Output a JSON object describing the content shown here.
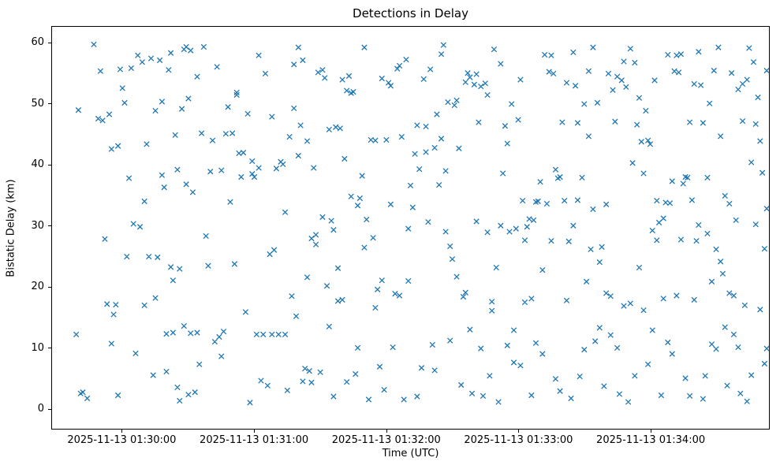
{
  "title": "Detections in Delay",
  "chart_data": {
    "type": "scatter",
    "title": "Detections in Delay",
    "xlabel": "Time (UTC)",
    "ylabel": "Bistatic Delay (km)",
    "marker": "x",
    "marker_color": "#1f77b4",
    "x_unit": "seconds after 2025-11-13 01:30:00 UTC",
    "xlim_seconds": [
      -32,
      294
    ],
    "ylim": [
      -3.4,
      62.7
    ],
    "y_ticks": [
      0,
      10,
      20,
      30,
      40,
      50,
      60
    ],
    "x_ticks": [
      {
        "t": 0,
        "label": "2025-11-13 01:30:00"
      },
      {
        "t": 60,
        "label": "2025-11-13 01:31:00"
      },
      {
        "t": 120,
        "label": "2025-11-13 01:32:00"
      },
      {
        "t": 180,
        "label": "2025-11-13 01:33:00"
      },
      {
        "t": 240,
        "label": "2025-11-13 01:34:00"
      }
    ],
    "points": [
      [
        -21,
        12.1
      ],
      [
        -20,
        49.0
      ],
      [
        -19,
        2.4
      ],
      [
        -18,
        2.6
      ],
      [
        -16,
        1.6
      ],
      [
        -13,
        59.8
      ],
      [
        -11,
        47.6
      ],
      [
        -10,
        55.4
      ],
      [
        -9,
        47.3
      ],
      [
        -8,
        27.8
      ],
      [
        -7,
        17.1
      ],
      [
        -6,
        48.3
      ],
      [
        -5,
        42.6
      ],
      [
        -5,
        10.6
      ],
      [
        -4,
        15.4
      ],
      [
        -3,
        17.0
      ],
      [
        -2,
        43.1
      ],
      [
        -2,
        2.1
      ],
      [
        -1,
        55.7
      ],
      [
        0,
        52.6
      ],
      [
        1,
        50.2
      ],
      [
        2,
        24.9
      ],
      [
        3,
        37.8
      ],
      [
        4,
        55.9
      ],
      [
        5,
        30.3
      ],
      [
        6,
        9.0
      ],
      [
        7,
        58.0
      ],
      [
        8,
        29.8
      ],
      [
        9,
        56.9
      ],
      [
        10,
        16.9
      ],
      [
        10,
        34.0
      ],
      [
        11,
        43.4
      ],
      [
        12,
        24.9
      ],
      [
        13,
        57.5
      ],
      [
        14,
        5.4
      ],
      [
        15,
        18.1
      ],
      [
        15,
        48.9
      ],
      [
        16,
        24.8
      ],
      [
        17,
        57.2
      ],
      [
        18,
        50.4
      ],
      [
        18,
        38.3
      ],
      [
        19,
        36.3
      ],
      [
        20,
        6.0
      ],
      [
        20,
        12.2
      ],
      [
        21,
        55.6
      ],
      [
        22,
        58.4
      ],
      [
        22,
        23.2
      ],
      [
        23,
        21.0
      ],
      [
        23,
        12.4
      ],
      [
        24,
        44.9
      ],
      [
        25,
        39.2
      ],
      [
        25,
        3.4
      ],
      [
        26,
        22.9
      ],
      [
        26,
        1.2
      ],
      [
        27,
        49.2
      ],
      [
        28,
        59.0
      ],
      [
        28,
        13.5
      ],
      [
        29,
        36.8
      ],
      [
        29,
        59.4
      ],
      [
        30,
        2.2
      ],
      [
        30,
        50.9
      ],
      [
        31,
        58.8
      ],
      [
        31,
        12.3
      ],
      [
        32,
        35.5
      ],
      [
        33,
        2.6
      ],
      [
        34,
        54.5
      ],
      [
        34,
        12.4
      ],
      [
        35,
        7.2
      ],
      [
        36,
        45.2
      ],
      [
        37,
        59.4
      ],
      [
        38,
        28.3
      ],
      [
        39,
        23.4
      ],
      [
        40,
        38.9
      ],
      [
        41,
        44.0
      ],
      [
        42,
        10.9
      ],
      [
        43,
        56.1
      ],
      [
        44,
        11.7
      ],
      [
        45,
        39.1
      ],
      [
        45,
        8.5
      ],
      [
        46,
        12.6
      ],
      [
        47,
        45.1
      ],
      [
        48,
        49.5
      ],
      [
        49,
        33.9
      ],
      [
        50,
        45.2
      ],
      [
        51,
        23.7
      ],
      [
        52,
        51.5
      ],
      [
        52,
        51.9
      ],
      [
        53,
        41.9
      ],
      [
        54,
        38.0
      ],
      [
        55,
        42.0
      ],
      [
        56,
        15.8
      ],
      [
        57,
        48.4
      ],
      [
        58,
        0.9
      ],
      [
        59,
        38.5
      ],
      [
        59,
        40.6
      ],
      [
        60,
        38.0
      ],
      [
        61,
        12.1
      ],
      [
        62,
        39.5
      ],
      [
        62,
        58.0
      ],
      [
        63,
        4.5
      ],
      [
        64,
        12.1
      ],
      [
        65,
        55.0
      ],
      [
        66,
        3.7
      ],
      [
        67,
        25.3
      ],
      [
        68,
        12.1
      ],
      [
        68,
        47.9
      ],
      [
        69,
        26.0
      ],
      [
        70,
        39.4
      ],
      [
        71,
        12.1
      ],
      [
        72,
        40.5
      ],
      [
        73,
        40.1
      ],
      [
        74,
        12.1
      ],
      [
        74,
        32.2
      ],
      [
        75,
        2.9
      ],
      [
        76,
        44.6
      ],
      [
        77,
        18.4
      ],
      [
        78,
        49.3
      ],
      [
        78,
        56.5
      ],
      [
        79,
        15.1
      ],
      [
        80,
        59.3
      ],
      [
        80,
        41.5
      ],
      [
        81,
        46.5
      ],
      [
        82,
        4.4
      ],
      [
        82,
        57.2
      ],
      [
        83,
        6.5
      ],
      [
        84,
        21.5
      ],
      [
        84,
        43.9
      ],
      [
        85,
        6.1
      ],
      [
        86,
        27.9
      ],
      [
        86,
        4.2
      ],
      [
        87,
        39.5
      ],
      [
        88,
        28.5
      ],
      [
        88,
        26.9
      ],
      [
        89,
        55.2
      ],
      [
        90,
        5.9
      ],
      [
        91,
        31.4
      ],
      [
        91,
        55.6
      ],
      [
        92,
        54.3
      ],
      [
        93,
        20.1
      ],
      [
        94,
        45.8
      ],
      [
        94,
        13.4
      ],
      [
        95,
        30.8
      ],
      [
        96,
        29.3
      ],
      [
        96,
        1.9
      ],
      [
        97,
        46.2
      ],
      [
        98,
        17.6
      ],
      [
        98,
        23.0
      ],
      [
        99,
        46.0
      ],
      [
        100,
        54.0
      ],
      [
        100,
        17.8
      ],
      [
        101,
        41.0
      ],
      [
        102,
        52.2
      ],
      [
        102,
        4.3
      ],
      [
        103,
        54.6
      ],
      [
        104,
        51.8
      ],
      [
        104,
        34.8
      ],
      [
        105,
        52.0
      ],
      [
        106,
        5.6
      ],
      [
        107,
        33.3
      ],
      [
        107,
        9.9
      ],
      [
        108,
        34.5
      ],
      [
        109,
        38.2
      ],
      [
        110,
        26.4
      ],
      [
        110,
        59.3
      ],
      [
        111,
        31.0
      ],
      [
        112,
        1.4
      ],
      [
        113,
        44.1
      ],
      [
        114,
        28.0
      ],
      [
        115,
        16.5
      ],
      [
        115,
        44.0
      ],
      [
        116,
        19.5
      ],
      [
        117,
        6.8
      ],
      [
        118,
        21.0
      ],
      [
        118,
        54.2
      ],
      [
        119,
        3.0
      ],
      [
        120,
        44.1
      ],
      [
        121,
        53.5
      ],
      [
        122,
        53.0
      ],
      [
        122,
        33.5
      ],
      [
        123,
        10.0
      ],
      [
        124,
        18.8
      ],
      [
        125,
        55.8
      ],
      [
        126,
        56.3
      ],
      [
        126,
        18.5
      ],
      [
        127,
        44.6
      ],
      [
        128,
        1.4
      ],
      [
        129,
        57.3
      ],
      [
        130,
        29.5
      ],
      [
        130,
        20.9
      ],
      [
        131,
        36.6
      ],
      [
        132,
        33.0
      ],
      [
        133,
        41.8
      ],
      [
        134,
        1.9
      ],
      [
        134,
        46.5
      ],
      [
        135,
        39.3
      ],
      [
        136,
        6.6
      ],
      [
        137,
        54.1
      ],
      [
        138,
        46.3
      ],
      [
        138,
        42.1
      ],
      [
        139,
        30.6
      ],
      [
        140,
        55.7
      ],
      [
        141,
        10.4
      ],
      [
        142,
        6.2
      ],
      [
        142,
        42.8
      ],
      [
        143,
        48.3
      ],
      [
        144,
        36.7
      ],
      [
        145,
        58.2
      ],
      [
        145,
        44.3
      ],
      [
        146,
        59.7
      ],
      [
        147,
        39.0
      ],
      [
        147,
        29.0
      ],
      [
        148,
        50.3
      ],
      [
        149,
        26.6
      ],
      [
        149,
        11.1
      ],
      [
        150,
        24.5
      ],
      [
        151,
        49.8
      ],
      [
        152,
        21.6
      ],
      [
        152,
        50.6
      ],
      [
        153,
        42.7
      ],
      [
        154,
        3.8
      ],
      [
        155,
        18.3
      ],
      [
        156,
        53.6
      ],
      [
        156,
        19.0
      ],
      [
        157,
        55.1
      ],
      [
        158,
        54.4
      ],
      [
        158,
        12.9
      ],
      [
        159,
        2.4
      ],
      [
        160,
        53.2
      ],
      [
        161,
        30.7
      ],
      [
        161,
        54.9
      ],
      [
        162,
        47.0
      ],
      [
        163,
        52.9
      ],
      [
        163,
        9.8
      ],
      [
        164,
        2.0
      ],
      [
        165,
        53.4
      ],
      [
        166,
        51.5
      ],
      [
        166,
        28.9
      ],
      [
        167,
        5.3
      ],
      [
        168,
        17.5
      ],
      [
        168,
        16.0
      ],
      [
        169,
        59.0
      ],
      [
        170,
        23.1
      ],
      [
        171,
        1.0
      ],
      [
        172,
        56.6
      ],
      [
        172,
        30.0
      ],
      [
        173,
        38.6
      ],
      [
        174,
        46.4
      ],
      [
        175,
        43.5
      ],
      [
        175,
        10.3
      ],
      [
        176,
        29.0
      ],
      [
        177,
        50.0
      ],
      [
        178,
        7.5
      ],
      [
        178,
        12.8
      ],
      [
        179,
        29.5
      ],
      [
        180,
        47.4
      ],
      [
        181,
        54.0
      ],
      [
        181,
        7.0
      ],
      [
        182,
        34.1
      ],
      [
        183,
        27.6
      ],
      [
        183,
        17.4
      ],
      [
        184,
        29.8
      ],
      [
        185,
        31.1
      ],
      [
        186,
        18.0
      ],
      [
        186,
        2.1
      ],
      [
        187,
        30.9
      ],
      [
        188,
        33.9
      ],
      [
        188,
        10.7
      ],
      [
        189,
        34.0
      ],
      [
        190,
        37.2
      ],
      [
        191,
        22.7
      ],
      [
        191,
        8.9
      ],
      [
        192,
        58.1
      ],
      [
        193,
        33.6
      ],
      [
        194,
        55.3
      ],
      [
        195,
        58.0
      ],
      [
        195,
        27.5
      ],
      [
        196,
        55.0
      ],
      [
        197,
        39.2
      ],
      [
        197,
        4.8
      ],
      [
        198,
        37.8
      ],
      [
        199,
        38.0
      ],
      [
        199,
        2.8
      ],
      [
        200,
        47.0
      ],
      [
        201,
        34.1
      ],
      [
        202,
        53.5
      ],
      [
        202,
        17.7
      ],
      [
        203,
        27.4
      ],
      [
        204,
        1.6
      ],
      [
        205,
        58.5
      ],
      [
        205,
        30.0
      ],
      [
        206,
        53.0
      ],
      [
        207,
        46.9
      ],
      [
        207,
        34.2
      ],
      [
        208,
        5.2
      ],
      [
        209,
        37.9
      ],
      [
        210,
        50.0
      ],
      [
        210,
        9.6
      ],
      [
        211,
        20.8
      ],
      [
        212,
        55.4
      ],
      [
        212,
        44.7
      ],
      [
        213,
        26.1
      ],
      [
        214,
        59.3
      ],
      [
        214,
        32.7
      ],
      [
        215,
        11.0
      ],
      [
        216,
        50.2
      ],
      [
        217,
        13.2
      ],
      [
        217,
        24.0
      ],
      [
        218,
        26.5
      ],
      [
        219,
        3.6
      ],
      [
        220,
        33.5
      ],
      [
        220,
        18.9
      ],
      [
        221,
        55.0
      ],
      [
        222,
        18.4
      ],
      [
        222,
        12.0
      ],
      [
        223,
        52.3
      ],
      [
        224,
        47.1
      ],
      [
        225,
        9.9
      ],
      [
        225,
        54.5
      ],
      [
        226,
        2.3
      ],
      [
        227,
        53.9
      ],
      [
        228,
        57.0
      ],
      [
        228,
        16.8
      ],
      [
        229,
        52.8
      ],
      [
        230,
        1.0
      ],
      [
        231,
        59.1
      ],
      [
        231,
        17.2
      ],
      [
        232,
        40.3
      ],
      [
        233,
        56.8
      ],
      [
        233,
        5.3
      ],
      [
        234,
        46.6
      ],
      [
        235,
        51.0
      ],
      [
        235,
        23.1
      ],
      [
        236,
        43.8
      ],
      [
        237,
        38.6
      ],
      [
        237,
        16.1
      ],
      [
        238,
        48.9
      ],
      [
        239,
        44.0
      ],
      [
        239,
        7.2
      ],
      [
        240,
        43.4
      ],
      [
        241,
        29.2
      ],
      [
        241,
        12.8
      ],
      [
        242,
        53.9
      ],
      [
        243,
        27.6
      ],
      [
        243,
        34.1
      ],
      [
        244,
        30.5
      ],
      [
        245,
        2.1
      ],
      [
        246,
        18.0
      ],
      [
        246,
        31.2
      ],
      [
        247,
        33.8
      ],
      [
        248,
        58.1
      ],
      [
        248,
        10.8
      ],
      [
        249,
        33.7
      ],
      [
        250,
        37.3
      ],
      [
        250,
        8.9
      ],
      [
        251,
        55.4
      ],
      [
        252,
        58.0
      ],
      [
        252,
        18.5
      ],
      [
        253,
        55.2
      ],
      [
        254,
        58.2
      ],
      [
        254,
        27.7
      ],
      [
        255,
        36.9
      ],
      [
        256,
        38.0
      ],
      [
        256,
        4.9
      ],
      [
        257,
        37.9
      ],
      [
        258,
        47.0
      ],
      [
        258,
        2.0
      ],
      [
        259,
        34.2
      ],
      [
        260,
        53.3
      ],
      [
        260,
        17.8
      ],
      [
        261,
        27.5
      ],
      [
        262,
        30.1
      ],
      [
        262,
        58.6
      ],
      [
        263,
        53.1
      ],
      [
        264,
        46.9
      ],
      [
        264,
        1.5
      ],
      [
        265,
        5.3
      ],
      [
        266,
        37.9
      ],
      [
        266,
        28.7
      ],
      [
        267,
        50.1
      ],
      [
        268,
        20.8
      ],
      [
        268,
        10.5
      ],
      [
        269,
        55.5
      ],
      [
        270,
        26.1
      ],
      [
        270,
        9.7
      ],
      [
        271,
        59.3
      ],
      [
        272,
        24.1
      ],
      [
        272,
        44.7
      ],
      [
        273,
        22.1
      ],
      [
        274,
        34.9
      ],
      [
        274,
        13.3
      ],
      [
        275,
        3.7
      ],
      [
        276,
        33.6
      ],
      [
        276,
        18.9
      ],
      [
        277,
        55.1
      ],
      [
        278,
        18.5
      ],
      [
        278,
        12.1
      ],
      [
        279,
        30.9
      ],
      [
        280,
        10.0
      ],
      [
        280,
        52.4
      ],
      [
        281,
        2.4
      ],
      [
        282,
        53.3
      ],
      [
        282,
        47.2
      ],
      [
        283,
        16.9
      ],
      [
        284,
        1.1
      ],
      [
        284,
        54.0
      ],
      [
        285,
        59.2
      ],
      [
        286,
        40.4
      ],
      [
        286,
        5.4
      ],
      [
        287,
        56.9
      ],
      [
        288,
        46.7
      ],
      [
        288,
        30.2
      ],
      [
        289,
        51.1
      ],
      [
        290,
        43.9
      ],
      [
        290,
        16.2
      ],
      [
        291,
        38.7
      ],
      [
        292,
        26.2
      ],
      [
        292,
        7.3
      ],
      [
        293,
        55.5
      ],
      [
        293,
        32.8
      ],
      [
        293,
        9.8
      ]
    ]
  }
}
